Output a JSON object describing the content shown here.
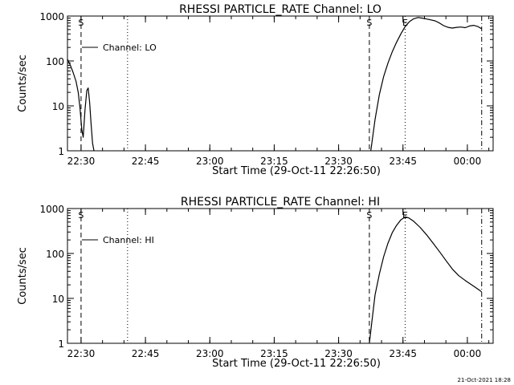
{
  "chart_data": [
    {
      "type": "line",
      "title": "RHESSI PARTICLE_RATE Channel: LO",
      "ylabel": "Counts/sec",
      "xlabel": "Start Time (29-Oct-11 22:26:50)",
      "y_scale": "log",
      "ylim": [
        1,
        1000
      ],
      "y_ticks": [
        "1",
        "10",
        "100",
        "1000"
      ],
      "x_ticks": [
        "22:30",
        "22:45",
        "23:00",
        "23:15",
        "23:30",
        "23:45",
        "00:00"
      ],
      "legend": "top-left",
      "series": [
        {
          "name": "Channel: LO",
          "segments": [
            {
              "x": [
                "22:26:50",
                "22:27:30",
                "22:28:10",
                "22:28:50",
                "22:29:20",
                "22:29:45",
                "22:30:10",
                "22:30:30",
                "22:30:55",
                "22:31:20",
                "22:31:40",
                "22:32:00",
                "22:32:20",
                "22:32:40",
                "22:33:00"
              ],
              "y": [
                110,
                80,
                55,
                35,
                20,
                9,
                3,
                2,
                8,
                22,
                25,
                12,
                4,
                1.5,
                1
              ]
            },
            {
              "x": [
                "23:37:30",
                "23:38:30",
                "23:39:30",
                "23:40:30",
                "23:41:30",
                "23:42:30",
                "23:43:30",
                "23:44:30",
                "23:45:30",
                "23:46:30",
                "23:47:30",
                "23:48:30",
                "23:49:30",
                "23:50:30",
                "23:51:30",
                "23:52:30",
                "23:53:30",
                "23:54:30",
                "23:55:30",
                "23:56:30",
                "23:57:30",
                "23:58:30",
                "23:59:30",
                "00:00:30",
                "00:01:30",
                "00:02:30",
                "00:03:20"
              ],
              "y": [
                1,
                5,
                18,
                45,
                90,
                160,
                260,
                400,
                580,
                750,
                870,
                930,
                900,
                860,
                820,
                780,
                700,
                610,
                560,
                540,
                560,
                570,
                550,
                600,
                620,
                580,
                520
              ]
            }
          ]
        }
      ],
      "markers": [
        {
          "x": "22:30:00",
          "style": "dashed",
          "label": "S"
        },
        {
          "x": "22:40:50",
          "style": "dotted",
          "label": ""
        },
        {
          "x": "23:37:10",
          "style": "dashed",
          "label": "S"
        },
        {
          "x": "23:45:30",
          "style": "dotted",
          "label": "E"
        },
        {
          "x": "00:03:20",
          "style": "dashdot",
          "label": ""
        }
      ]
    },
    {
      "type": "line",
      "title": "RHESSI PARTICLE_RATE Channel: HI",
      "ylabel": "Counts/sec",
      "xlabel": "Start Time (29-Oct-11 22:26:50)",
      "y_scale": "log",
      "ylim": [
        1,
        1000
      ],
      "y_ticks": [
        "1",
        "10",
        "100",
        "1000"
      ],
      "x_ticks": [
        "22:30",
        "22:45",
        "23:00",
        "23:15",
        "23:30",
        "23:45",
        "00:00"
      ],
      "legend": "top-left",
      "series": [
        {
          "name": "Channel: HI",
          "segments": [
            {
              "x": [
                "23:37:10",
                "23:37:45",
                "23:38:30",
                "23:39:30",
                "23:40:30",
                "23:41:30",
                "23:42:30",
                "23:43:30",
                "23:44:30",
                "23:45:30",
                "23:46:20",
                "23:47:30",
                "23:49:00",
                "23:50:30",
                "23:52:00",
                "23:53:30",
                "23:55:00",
                "23:56:30",
                "23:58:00",
                "23:59:30",
                "00:01:00",
                "00:02:30",
                "00:03:20"
              ],
              "y": [
                1,
                3,
                12,
                35,
                85,
                170,
                290,
                420,
                560,
                650,
                620,
                520,
                380,
                260,
                170,
                110,
                70,
                45,
                32,
                25,
                20,
                16,
                14
              ]
            }
          ]
        }
      ],
      "markers": [
        {
          "x": "22:30:00",
          "style": "dashed",
          "label": "S"
        },
        {
          "x": "22:40:50",
          "style": "dotted",
          "label": ""
        },
        {
          "x": "23:37:10",
          "style": "dashed",
          "label": "S"
        },
        {
          "x": "23:45:30",
          "style": "dotted",
          "label": "E"
        },
        {
          "x": "00:03:20",
          "style": "dashdot",
          "label": ""
        }
      ]
    }
  ],
  "footer": {
    "timestamp": "21-Oct-2021 18:28"
  }
}
